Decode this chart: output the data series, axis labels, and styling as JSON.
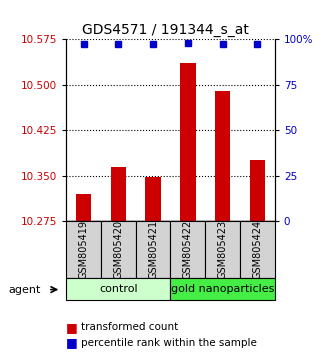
{
  "title": "GDS4571 / 191344_s_at",
  "categories": [
    "GSM805419",
    "GSM805420",
    "GSM805421",
    "GSM805422",
    "GSM805423",
    "GSM805424"
  ],
  "bar_values": [
    10.32,
    10.365,
    10.348,
    10.535,
    10.49,
    10.375
  ],
  "percentile_values": [
    97,
    97,
    97,
    98,
    97,
    97
  ],
  "ylim_left": [
    10.275,
    10.575
  ],
  "ylim_right": [
    0,
    100
  ],
  "yticks_left": [
    10.275,
    10.35,
    10.425,
    10.5,
    10.575
  ],
  "yticks_right": [
    0,
    25,
    50,
    75,
    100
  ],
  "bar_color": "#cc0000",
  "dot_color": "#0000cc",
  "tick_label_color_left": "#cc0000",
  "tick_label_color_right": "#0000cc",
  "group_label": "agent",
  "control_label": "control",
  "gold_label": "gold nanoparticles",
  "control_color": "#ccffcc",
  "gold_color": "#44ee44",
  "sample_box_color": "#d3d3d3",
  "legend_items": [
    {
      "label": "transformed count",
      "color": "#cc0000"
    },
    {
      "label": "percentile rank within the sample",
      "color": "#0000cc"
    }
  ]
}
